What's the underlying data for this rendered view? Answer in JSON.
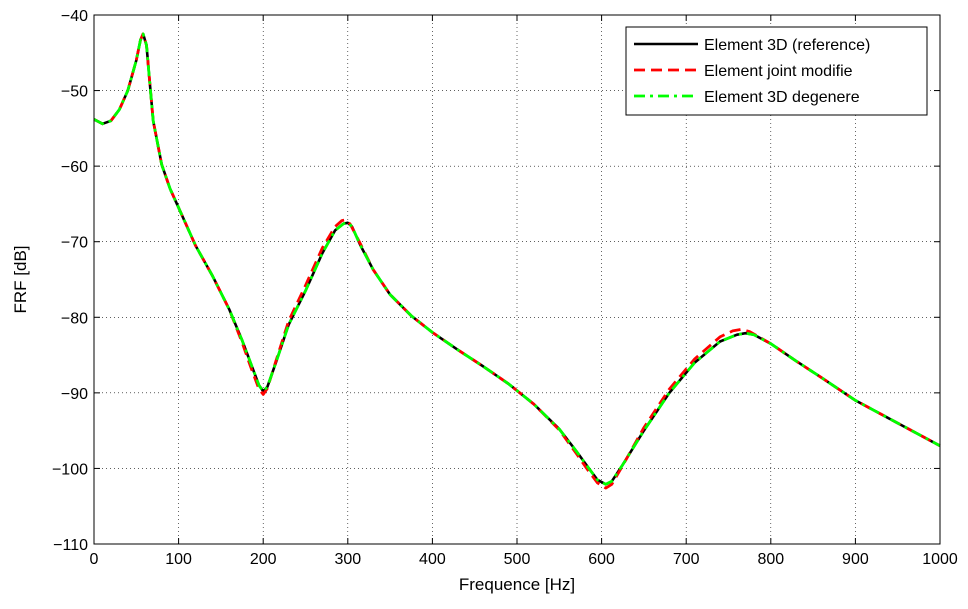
{
  "chart_data": {
    "type": "line",
    "title": "",
    "xlabel": "Frequence [Hz]",
    "ylabel": "FRF [dB]",
    "xlim": [
      0,
      1000
    ],
    "ylim": [
      -110,
      -40
    ],
    "xticks": [
      0,
      100,
      200,
      300,
      400,
      500,
      600,
      700,
      800,
      900,
      1000
    ],
    "yticks": [
      -110,
      -100,
      -90,
      -80,
      -70,
      -60,
      -50,
      -40
    ],
    "grid": true,
    "legend_position": "top-right",
    "series": [
      {
        "name": "Element 3D (reference)",
        "color": "#000000",
        "style": "solid",
        "x": [
          0,
          10,
          20,
          30,
          40,
          50,
          55,
          58,
          62,
          66,
          70,
          80,
          90,
          100,
          120,
          140,
          160,
          175,
          185,
          195,
          200,
          205,
          215,
          230,
          250,
          270,
          285,
          295,
          300,
          305,
          315,
          330,
          350,
          375,
          400,
          430,
          460,
          490,
          520,
          550,
          570,
          585,
          595,
          605,
          612,
          625,
          650,
          680,
          710,
          740,
          760,
          770,
          780,
          800,
          830,
          860,
          900,
          950,
          1000
        ],
        "y": [
          -53.8,
          -54.4,
          -54.0,
          -52.5,
          -50.0,
          -46.0,
          -43.3,
          -42.5,
          -44.0,
          -49.0,
          -54.0,
          -59.8,
          -63.0,
          -65.5,
          -70.5,
          -74.5,
          -79.0,
          -83.0,
          -86.0,
          -89.0,
          -89.8,
          -89.2,
          -86.0,
          -81.0,
          -76.5,
          -71.5,
          -68.5,
          -67.6,
          -67.5,
          -68.0,
          -70.5,
          -73.7,
          -77.0,
          -79.8,
          -82.0,
          -84.3,
          -86.5,
          -88.8,
          -91.5,
          -94.8,
          -97.7,
          -100.0,
          -101.5,
          -102.1,
          -101.7,
          -99.5,
          -95.0,
          -90.0,
          -86.0,
          -83.2,
          -82.3,
          -82.1,
          -82.3,
          -83.5,
          -85.8,
          -88.0,
          -91.0,
          -94.0,
          -97.0
        ]
      },
      {
        "name": "Element joint modifie",
        "color": "#ff0000",
        "style": "dashed",
        "x": [
          0,
          10,
          20,
          30,
          40,
          50,
          55,
          58,
          62,
          66,
          70,
          80,
          90,
          100,
          120,
          140,
          160,
          175,
          185,
          195,
          200,
          205,
          215,
          230,
          250,
          270,
          285,
          293,
          298,
          303,
          315,
          330,
          350,
          375,
          400,
          430,
          460,
          490,
          520,
          550,
          570,
          585,
          595,
          605,
          612,
          625,
          650,
          680,
          710,
          740,
          755,
          765,
          775,
          800,
          830,
          860,
          900,
          950,
          1000
        ],
        "y": [
          -53.8,
          -54.4,
          -54.0,
          -52.5,
          -50.0,
          -46.0,
          -43.3,
          -42.5,
          -44.0,
          -49.0,
          -54.0,
          -59.8,
          -63.0,
          -65.5,
          -70.5,
          -74.5,
          -79.0,
          -83.3,
          -86.5,
          -89.5,
          -90.2,
          -89.4,
          -85.8,
          -80.5,
          -75.8,
          -70.8,
          -68.0,
          -67.2,
          -67.1,
          -67.7,
          -70.3,
          -73.7,
          -77.0,
          -79.8,
          -82.0,
          -84.3,
          -86.5,
          -88.8,
          -91.5,
          -94.9,
          -98.0,
          -100.4,
          -101.9,
          -102.6,
          -102.1,
          -99.6,
          -94.6,
          -89.5,
          -85.5,
          -82.6,
          -81.8,
          -81.6,
          -81.9,
          -83.5,
          -85.8,
          -88.0,
          -91.0,
          -94.0,
          -97.0
        ]
      },
      {
        "name": "Element 3D degenere",
        "color": "#00ff00",
        "style": "dashdot",
        "x": [
          0,
          10,
          20,
          30,
          40,
          50,
          55,
          58,
          62,
          66,
          70,
          80,
          90,
          100,
          120,
          140,
          160,
          175,
          185,
          195,
          200,
          205,
          215,
          230,
          250,
          270,
          285,
          295,
          300,
          305,
          315,
          330,
          350,
          375,
          400,
          430,
          460,
          490,
          520,
          550,
          570,
          585,
          595,
          605,
          612,
          625,
          650,
          680,
          710,
          740,
          760,
          770,
          780,
          800,
          830,
          860,
          900,
          950,
          1000
        ],
        "y": [
          -53.8,
          -54.4,
          -54.0,
          -52.5,
          -50.0,
          -46.0,
          -43.3,
          -42.5,
          -44.0,
          -49.0,
          -54.0,
          -59.8,
          -63.0,
          -65.5,
          -70.5,
          -74.5,
          -79.0,
          -83.0,
          -86.0,
          -89.0,
          -89.8,
          -89.2,
          -86.0,
          -81.0,
          -76.5,
          -71.5,
          -68.5,
          -67.6,
          -67.5,
          -68.0,
          -70.5,
          -73.7,
          -77.0,
          -79.8,
          -82.0,
          -84.3,
          -86.5,
          -88.8,
          -91.5,
          -94.8,
          -97.7,
          -100.0,
          -101.5,
          -102.1,
          -101.7,
          -99.5,
          -95.0,
          -90.0,
          -86.0,
          -83.2,
          -82.3,
          -82.1,
          -82.3,
          -83.5,
          -85.8,
          -88.0,
          -91.0,
          -94.0,
          -97.0
        ]
      }
    ]
  }
}
